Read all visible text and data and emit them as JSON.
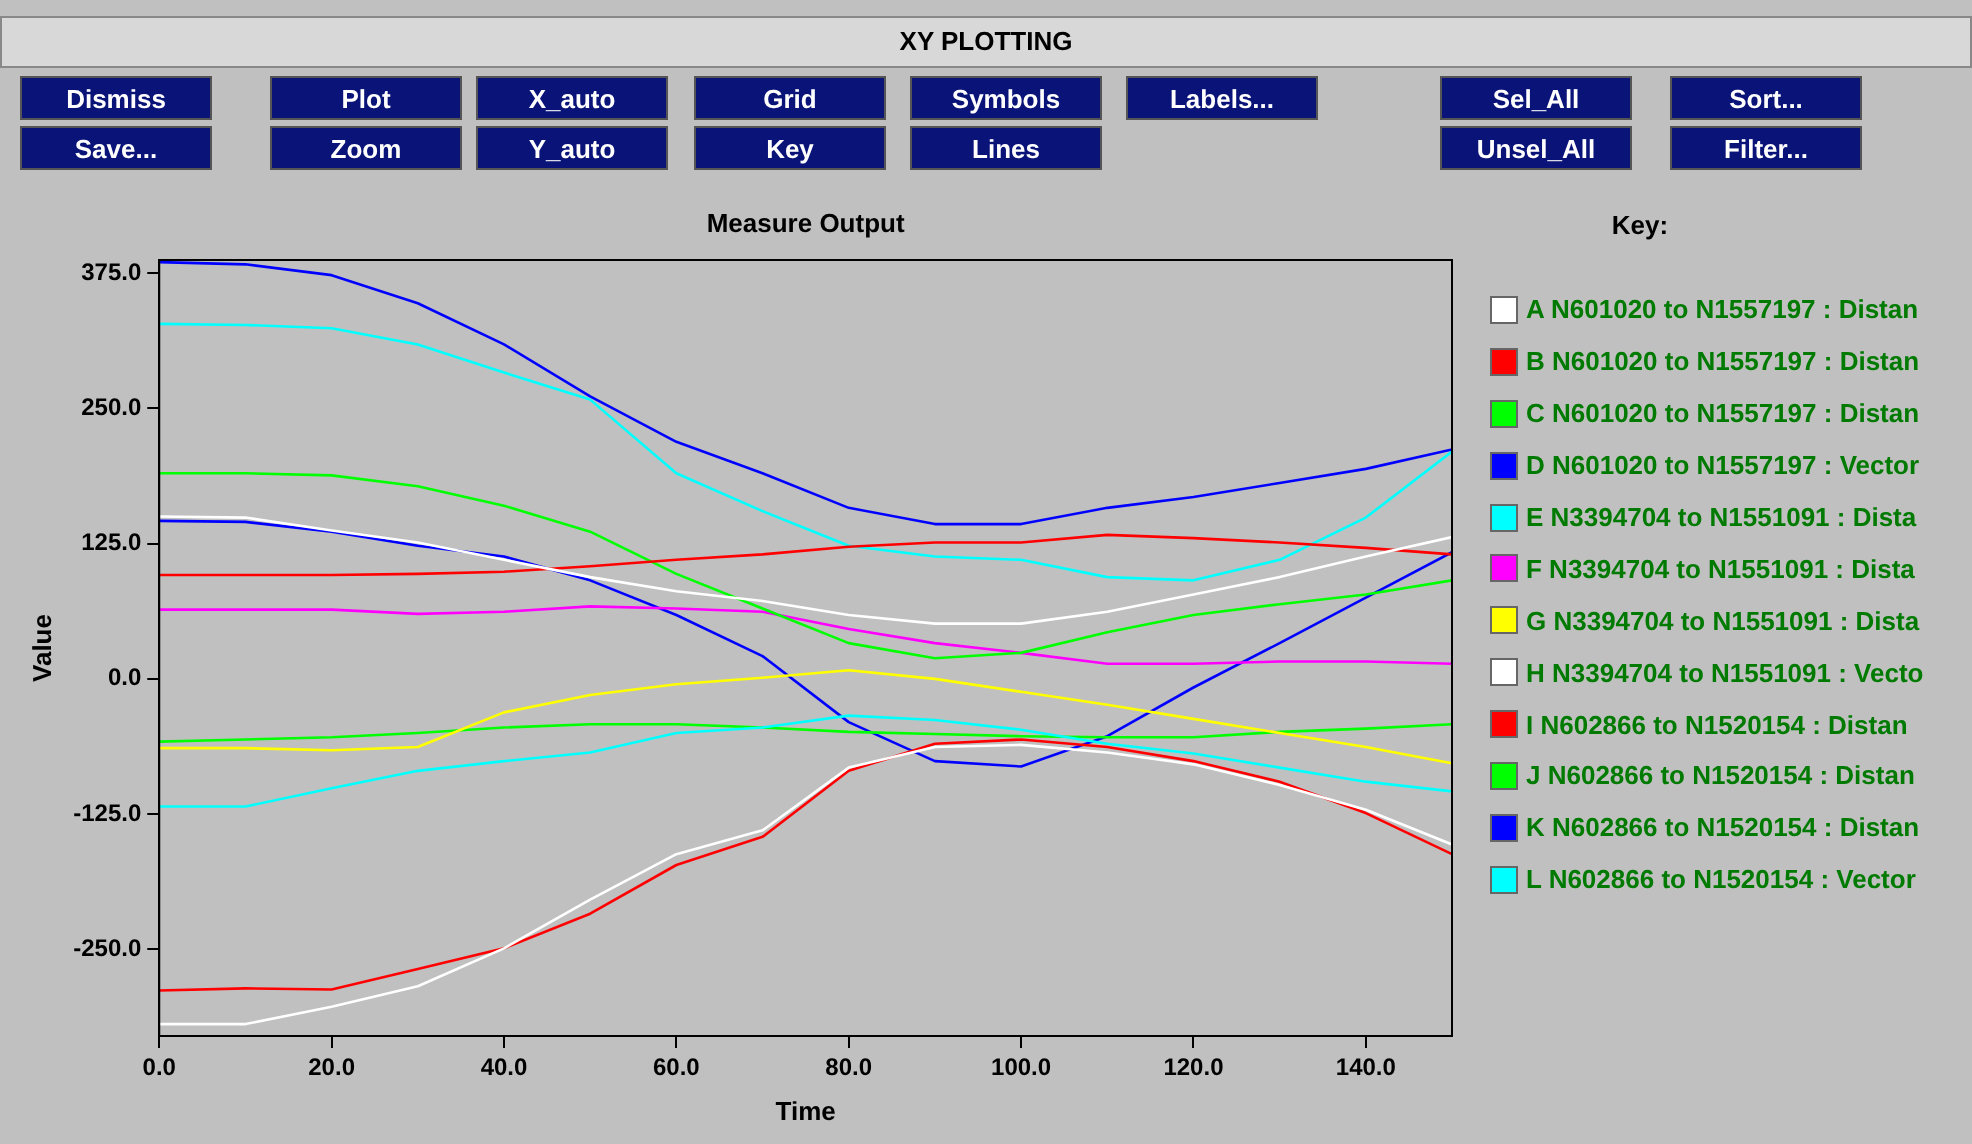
{
  "chart_data": {
    "type": "line",
    "title": "Measure Output",
    "xlabel": "Time",
    "ylabel": "Value",
    "legend_title": "Key:",
    "legend": "right",
    "grid": false,
    "marker": "none",
    "line_style": "solid",
    "annotations": [
      "XY PLOTTING",
      "Dismiss",
      "Plot",
      "X_auto",
      "Grid",
      "Symbols",
      "Labels...",
      "Sel_All",
      "Sort...",
      "Save...",
      "Zoom",
      "Y_auto",
      "Key",
      "Lines",
      "Unsel_All",
      "Filter..."
    ],
    "x": [
      0,
      10,
      20,
      30,
      40,
      50,
      60,
      70,
      80,
      90,
      100,
      110,
      120,
      130,
      140,
      150
    ],
    "xlim": [
      0,
      150
    ],
    "xticks": [
      {
        "value": 0,
        "label": "0.0"
      },
      {
        "value": 20,
        "label": "20.0"
      },
      {
        "value": 40,
        "label": "40.0"
      },
      {
        "value": 60,
        "label": "60.0"
      },
      {
        "value": 80,
        "label": "80.0"
      },
      {
        "value": 100,
        "label": "100.0"
      },
      {
        "value": 120,
        "label": "120.0"
      },
      {
        "value": 140,
        "label": "140.0"
      }
    ],
    "ylim": [
      -330,
      387
    ],
    "yticks": [
      {
        "value": -250,
        "label": "-250.0"
      },
      {
        "value": -125,
        "label": "-125.0"
      },
      {
        "value": 0,
        "label": "0.0"
      },
      {
        "value": 125,
        "label": "125.0"
      },
      {
        "value": 250,
        "label": "250.0"
      },
      {
        "value": 375,
        "label": "375.0"
      }
    ],
    "series": [
      {
        "name": "A N601020 to N1557197 : Distan",
        "color": "#ffffff",
        "values": [
          150,
          149,
          137,
          126,
          110,
          94,
          81,
          72,
          59,
          51,
          51,
          62,
          78,
          94,
          113,
          131
        ]
      },
      {
        "name": "B N601020 to N1557197 : Distan",
        "color": "#ff0000",
        "values": [
          96,
          96,
          96,
          97,
          99,
          104,
          110,
          115,
          122,
          126,
          126,
          133,
          130,
          126,
          121,
          115
        ]
      },
      {
        "name": "C N601020 to N1557197 : Distan",
        "color": "#00ff00",
        "values": [
          190,
          190,
          188,
          178,
          160,
          136,
          97,
          65,
          33,
          19,
          24,
          43,
          59,
          69,
          78,
          91
        ]
      },
      {
        "name": "D N601020 to N1557197 : Vector",
        "color": "#0000ff",
        "values": [
          385,
          383,
          373,
          347,
          309,
          261,
          219,
          190,
          158,
          143,
          143,
          158,
          168,
          181,
          194,
          212
        ]
      },
      {
        "name": "E N3394704 to N1551091 : Dista",
        "color": "#00ffff",
        "values": [
          -118,
          -118,
          -101,
          -85,
          -76,
          -68,
          -50,
          -45,
          -34,
          -38,
          -47,
          -60,
          -69,
          -82,
          -95,
          -104
        ]
      },
      {
        "name": "F N3394704 to N1551091 : Dista",
        "color": "#ff00ff",
        "values": [
          64,
          64,
          64,
          60,
          62,
          67,
          65,
          62,
          46,
          33,
          24,
          14,
          14,
          16,
          16,
          14
        ]
      },
      {
        "name": "G N3394704 to N1551091 : Dista",
        "color": "#ffff00",
        "values": [
          -64,
          -64,
          -66,
          -63,
          -31,
          -15,
          -5,
          1,
          8,
          0,
          -12,
          -24,
          -37,
          -50,
          -63,
          -78
        ]
      },
      {
        "name": "H N3394704 to N1551091 : Vecto",
        "color": "#ffffff",
        "values": [
          -319,
          -319,
          -303,
          -284,
          -249,
          -204,
          -162,
          -140,
          -82,
          -63,
          -61,
          -68,
          -79,
          -98,
          -121,
          -153
        ]
      },
      {
        "name": "I N602866 to N1520154 : Distan",
        "color": "#ff0000",
        "values": [
          -288,
          -286,
          -287,
          -268,
          -249,
          -217,
          -172,
          -146,
          -85,
          -60,
          -56,
          -63,
          -76,
          -95,
          -124,
          -162
        ]
      },
      {
        "name": "J N602866 to N1520154 : Distan",
        "color": "#00ff00",
        "values": [
          -58,
          -56,
          -54,
          -50,
          -45,
          -42,
          -42,
          -45,
          -49,
          -51,
          -53,
          -54,
          -54,
          -49,
          -46,
          -42
        ]
      },
      {
        "name": "K N602866 to N1520154 : Distan",
        "color": "#0000ff",
        "values": [
          146,
          145,
          136,
          123,
          113,
          91,
          59,
          21,
          -40,
          -76,
          -81,
          -53,
          -8,
          33,
          75,
          117
        ]
      },
      {
        "name": "L N602866 to N1520154 : Vector",
        "color": "#00ffff",
        "values": [
          328,
          327,
          324,
          309,
          283,
          258,
          190,
          155,
          123,
          113,
          110,
          94,
          91,
          110,
          149,
          210
        ]
      }
    ]
  }
}
